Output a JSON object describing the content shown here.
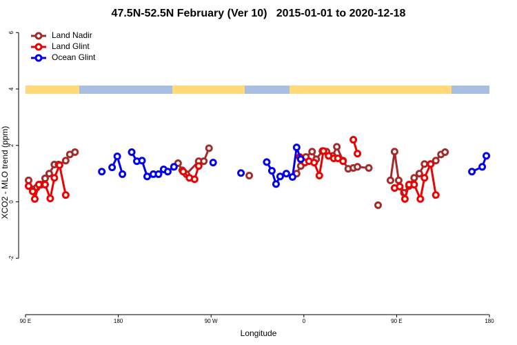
{
  "chart_data": {
    "type": "line",
    "title": "47.5N-52.5N February (Ver 10)   2015-01-01 to 2020-12-18",
    "xlabel": "Longitude",
    "ylabel": "XCO2 - MLO trend (ppm)",
    "xlim": [
      90,
      540
    ],
    "ylim": [
      -4,
      6.25
    ],
    "xticks": [
      {
        "value": 90,
        "label": "90 E"
      },
      180,
      {
        "value": 270,
        "label": "90 W"
      },
      {
        "value": 360,
        "label": "0"
      },
      {
        "value": 450,
        "label": "90 E"
      },
      {
        "value": 540,
        "label": "180"
      }
    ],
    "yticks": [
      -2,
      0,
      2,
      4,
      6
    ],
    "legend": "top-left",
    "series": [
      {
        "name": "Land Nadir",
        "color": "#a52a2a",
        "x": [
          93,
          97,
          101,
          105,
          109,
          113,
          118,
          122,
          129,
          133,
          138,
          null,
          238,
          242,
          246,
          258,
          263,
          268,
          null,
          307,
          null,
          353,
          357,
          362,
          368,
          372,
          378,
          382,
          388,
          392,
          398,
          403,
          408,
          412,
          423,
          null,
          432,
          null,
          444,
          448,
          452,
          457,
          462,
          467,
          472,
          477,
          483,
          488,
          493,
          497
        ],
        "values": [
          0.76,
          0.44,
          0.51,
          0.61,
          0.83,
          1.0,
          1.32,
          1.32,
          1.46,
          1.68,
          1.76,
          null,
          1.37,
          1.12,
          0.98,
          1.44,
          1.44,
          1.9,
          null,
          0.93,
          null,
          1.0,
          1.27,
          1.59,
          1.78,
          1.51,
          1.8,
          1.78,
          1.63,
          1.95,
          1.46,
          1.17,
          1.2,
          1.24,
          1.2,
          null,
          -0.12,
          null,
          0.76,
          1.78,
          0.76,
          0.32,
          0.56,
          0.85,
          1.0,
          1.34,
          1.34,
          1.46,
          1.68,
          1.76
        ]
      },
      {
        "name": "Land Glint",
        "color": "#ee0000",
        "x": [
          93,
          97,
          99,
          103,
          109,
          114,
          118,
          123,
          129,
          null,
          243,
          249,
          254,
          258,
          null,
          356,
          361,
          365,
          370,
          375,
          379,
          384,
          389,
          393,
          398,
          null,
          408,
          412,
          null,
          448,
          453,
          458,
          462,
          467,
          473,
          477,
          483,
          488
        ],
        "values": [
          0.56,
          0.37,
          0.1,
          0.61,
          0.61,
          0.12,
          0.85,
          1.3,
          0.24,
          null,
          1.07,
          0.85,
          0.8,
          1.27,
          null,
          1.59,
          1.39,
          1.44,
          1.39,
          0.93,
          1.8,
          1.63,
          1.54,
          1.54,
          1.44,
          null,
          2.2,
          1.71,
          null,
          0.49,
          0.54,
          0.1,
          0.61,
          0.61,
          0.1,
          0.85,
          1.34,
          0.24
        ]
      },
      {
        "name": "Ocean Glint",
        "color": "#0000ee",
        "x": [
          164,
          null,
          174,
          179,
          184,
          null,
          193,
          198,
          203,
          208,
          214,
          219,
          224,
          228,
          234,
          null,
          272,
          null,
          299,
          null,
          324,
          329,
          333,
          337,
          343,
          349,
          353,
          357,
          null,
          523,
          533,
          537
        ],
        "values": [
          1.07,
          null,
          1.22,
          1.61,
          0.98,
          null,
          1.76,
          1.44,
          1.46,
          0.9,
          0.98,
          0.98,
          1.15,
          1.07,
          1.24,
          null,
          1.39,
          null,
          1.02,
          null,
          1.41,
          1.1,
          0.63,
          0.9,
          1.0,
          0.88,
          1.93,
          1.51,
          null,
          1.07,
          1.24,
          1.63
        ]
      }
    ]
  }
}
